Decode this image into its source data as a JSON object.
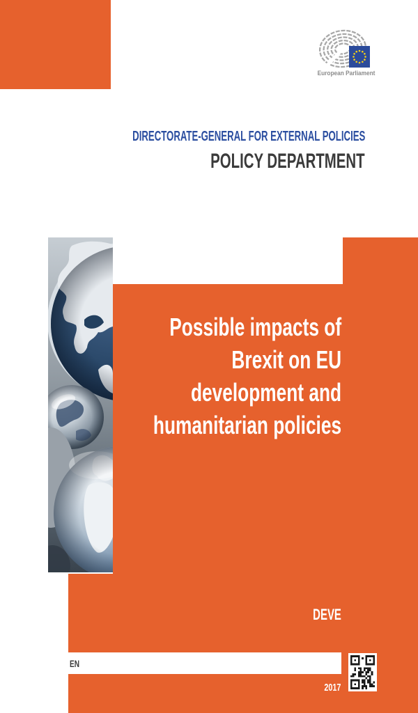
{
  "colors": {
    "orange": "#E6612D",
    "heading_blue": "#2B4EA0",
    "heading_dark": "#3B3B3B",
    "eu_blue": "#2B4B9B",
    "star_yellow": "#F7D117",
    "logo_gray": "#A8A8A8"
  },
  "logo": {
    "caption": "European Parliament"
  },
  "header": {
    "directorate": "DIRECTORATE-GENERAL FOR EXTERNAL POLICIES",
    "department": "POLICY DEPARTMENT"
  },
  "cover": {
    "title_lines": {
      "0": "Possible impacts of",
      "1": "Brexit on EU",
      "2": "development and",
      "3": "humanitarian policies"
    },
    "committee": "DEVE",
    "language": "EN",
    "year": "2017"
  }
}
